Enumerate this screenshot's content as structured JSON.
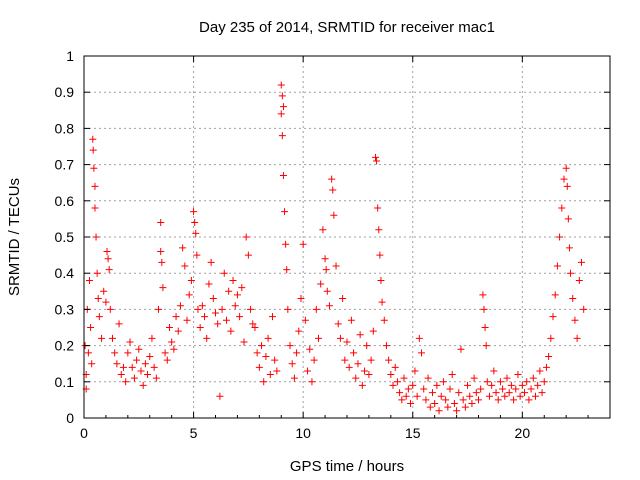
{
  "chart_data": {
    "type": "scatter",
    "title": "Day 235 of 2014, SRMTID for receiver mac1",
    "xlabel": "GPS time / hours",
    "ylabel": "SRMTID / TECUs",
    "xlim": [
      0,
      24
    ],
    "ylim": [
      0,
      1
    ],
    "xticks": [
      0,
      5,
      10,
      15,
      20
    ],
    "xtick_labels": [
      "0",
      "5",
      "10",
      "15",
      "20"
    ],
    "yticks": [
      0,
      0.1,
      0.2,
      0.3,
      0.4,
      0.5,
      0.6,
      0.7,
      0.8,
      0.9,
      1
    ],
    "ytick_labels": [
      "0",
      "0.1",
      "0.2",
      "0.3",
      "0.4",
      "0.5",
      "0.6",
      "0.7",
      "0.8",
      "0.9",
      "1"
    ],
    "grid": true,
    "marker": "+",
    "color": "#ff0000",
    "series": [
      {
        "name": "mac1",
        "points": [
          [
            0.05,
            0.2
          ],
          [
            0.1,
            0.12
          ],
          [
            0.1,
            0.08
          ],
          [
            0.15,
            0.3
          ],
          [
            0.2,
            0.18
          ],
          [
            0.25,
            0.38
          ],
          [
            0.3,
            0.25
          ],
          [
            0.35,
            0.15
          ],
          [
            0.4,
            0.77
          ],
          [
            0.42,
            0.74
          ],
          [
            0.45,
            0.69
          ],
          [
            0.5,
            0.64
          ],
          [
            0.5,
            0.58
          ],
          [
            0.55,
            0.5
          ],
          [
            0.6,
            0.4
          ],
          [
            0.65,
            0.33
          ],
          [
            0.7,
            0.28
          ],
          [
            0.8,
            0.22
          ],
          [
            0.9,
            0.35
          ],
          [
            1.0,
            0.32
          ],
          [
            1.05,
            0.46
          ],
          [
            1.1,
            0.44
          ],
          [
            1.15,
            0.41
          ],
          [
            1.2,
            0.3
          ],
          [
            1.3,
            0.22
          ],
          [
            1.4,
            0.18
          ],
          [
            1.5,
            0.15
          ],
          [
            1.6,
            0.26
          ],
          [
            1.7,
            0.12
          ],
          [
            1.8,
            0.14
          ],
          [
            1.9,
            0.1
          ],
          [
            2.0,
            0.18
          ],
          [
            2.1,
            0.21
          ],
          [
            2.2,
            0.14
          ],
          [
            2.3,
            0.11
          ],
          [
            2.4,
            0.16
          ],
          [
            2.5,
            0.19
          ],
          [
            2.6,
            0.13
          ],
          [
            2.7,
            0.09
          ],
          [
            2.8,
            0.15
          ],
          [
            2.9,
            0.12
          ],
          [
            3.0,
            0.17
          ],
          [
            3.1,
            0.22
          ],
          [
            3.2,
            0.14
          ],
          [
            3.3,
            0.11
          ],
          [
            3.4,
            0.3
          ],
          [
            3.5,
            0.54
          ],
          [
            3.5,
            0.46
          ],
          [
            3.55,
            0.43
          ],
          [
            3.6,
            0.36
          ],
          [
            3.7,
            0.18
          ],
          [
            3.8,
            0.16
          ],
          [
            3.9,
            0.25
          ],
          [
            4.0,
            0.21
          ],
          [
            4.1,
            0.19
          ],
          [
            4.2,
            0.28
          ],
          [
            4.3,
            0.24
          ],
          [
            4.4,
            0.31
          ],
          [
            4.5,
            0.47
          ],
          [
            4.6,
            0.42
          ],
          [
            4.7,
            0.27
          ],
          [
            4.8,
            0.34
          ],
          [
            4.9,
            0.38
          ],
          [
            5.0,
            0.57
          ],
          [
            5.05,
            0.54
          ],
          [
            5.1,
            0.51
          ],
          [
            5.15,
            0.45
          ],
          [
            5.2,
            0.3
          ],
          [
            5.3,
            0.25
          ],
          [
            5.4,
            0.31
          ],
          [
            5.5,
            0.28
          ],
          [
            5.6,
            0.22
          ],
          [
            5.7,
            0.37
          ],
          [
            5.8,
            0.43
          ],
          [
            5.9,
            0.33
          ],
          [
            6.0,
            0.29
          ],
          [
            6.1,
            0.26
          ],
          [
            6.2,
            0.06
          ],
          [
            6.3,
            0.3
          ],
          [
            6.4,
            0.4
          ],
          [
            6.5,
            0.27
          ],
          [
            6.6,
            0.35
          ],
          [
            6.7,
            0.24
          ],
          [
            6.8,
            0.38
          ],
          [
            6.9,
            0.31
          ],
          [
            7.0,
            0.34
          ],
          [
            7.1,
            0.28
          ],
          [
            7.2,
            0.36
          ],
          [
            7.3,
            0.21
          ],
          [
            7.4,
            0.5
          ],
          [
            7.5,
            0.45
          ],
          [
            7.6,
            0.3
          ],
          [
            7.7,
            0.26
          ],
          [
            7.8,
            0.25
          ],
          [
            7.9,
            0.18
          ],
          [
            8.0,
            0.14
          ],
          [
            8.1,
            0.2
          ],
          [
            8.2,
            0.1
          ],
          [
            8.3,
            0.17
          ],
          [
            8.4,
            0.22
          ],
          [
            8.5,
            0.12
          ],
          [
            8.6,
            0.28
          ],
          [
            8.7,
            0.16
          ],
          [
            8.8,
            0.13
          ],
          [
            9.0,
            0.92
          ],
          [
            9.05,
            0.89
          ],
          [
            9.1,
            0.86
          ],
          [
            9.0,
            0.84
          ],
          [
            9.05,
            0.78
          ],
          [
            9.1,
            0.67
          ],
          [
            9.15,
            0.57
          ],
          [
            9.2,
            0.48
          ],
          [
            9.25,
            0.41
          ],
          [
            9.3,
            0.3
          ],
          [
            9.4,
            0.2
          ],
          [
            9.5,
            0.15
          ],
          [
            9.6,
            0.11
          ],
          [
            9.7,
            0.18
          ],
          [
            9.8,
            0.24
          ],
          [
            9.9,
            0.33
          ],
          [
            10.0,
            0.48
          ],
          [
            10.1,
            0.27
          ],
          [
            10.2,
            0.13
          ],
          [
            10.3,
            0.19
          ],
          [
            10.4,
            0.1
          ],
          [
            10.5,
            0.16
          ],
          [
            10.6,
            0.3
          ],
          [
            10.7,
            0.22
          ],
          [
            10.8,
            0.37
          ],
          [
            10.9,
            0.52
          ],
          [
            11.0,
            0.44
          ],
          [
            11.05,
            0.41
          ],
          [
            11.1,
            0.35
          ],
          [
            11.2,
            0.31
          ],
          [
            11.3,
            0.66
          ],
          [
            11.35,
            0.63
          ],
          [
            11.4,
            0.56
          ],
          [
            11.5,
            0.42
          ],
          [
            11.6,
            0.26
          ],
          [
            11.7,
            0.22
          ],
          [
            11.8,
            0.33
          ],
          [
            11.9,
            0.16
          ],
          [
            12.0,
            0.21
          ],
          [
            12.1,
            0.14
          ],
          [
            12.2,
            0.27
          ],
          [
            12.3,
            0.18
          ],
          [
            12.4,
            0.11
          ],
          [
            12.5,
            0.15
          ],
          [
            12.6,
            0.23
          ],
          [
            12.7,
            0.09
          ],
          [
            12.8,
            0.13
          ],
          [
            12.9,
            0.2
          ],
          [
            13.0,
            0.12
          ],
          [
            13.1,
            0.16
          ],
          [
            13.2,
            0.24
          ],
          [
            13.3,
            0.72
          ],
          [
            13.35,
            0.71
          ],
          [
            13.4,
            0.58
          ],
          [
            13.45,
            0.52
          ],
          [
            13.5,
            0.45
          ],
          [
            13.55,
            0.38
          ],
          [
            13.6,
            0.32
          ],
          [
            13.7,
            0.27
          ],
          [
            13.8,
            0.2
          ],
          [
            13.9,
            0.16
          ],
          [
            14.0,
            0.12
          ],
          [
            14.1,
            0.09
          ],
          [
            14.2,
            0.14
          ],
          [
            14.3,
            0.1
          ],
          [
            14.4,
            0.07
          ],
          [
            14.5,
            0.05
          ],
          [
            14.6,
            0.11
          ],
          [
            14.7,
            0.06
          ],
          [
            14.8,
            0.08
          ],
          [
            14.9,
            0.04
          ],
          [
            15.0,
            0.09
          ],
          [
            15.1,
            0.13
          ],
          [
            15.2,
            0.06
          ],
          [
            15.3,
            0.22
          ],
          [
            15.4,
            0.18
          ],
          [
            15.5,
            0.08
          ],
          [
            15.6,
            0.05
          ],
          [
            15.7,
            0.11
          ],
          [
            15.8,
            0.03
          ],
          [
            15.9,
            0.07
          ],
          [
            16.0,
            0.04
          ],
          [
            16.1,
            0.09
          ],
          [
            16.2,
            0.02
          ],
          [
            16.3,
            0.06
          ],
          [
            16.4,
            0.1
          ],
          [
            16.5,
            0.05
          ],
          [
            16.6,
            0.03
          ],
          [
            16.7,
            0.08
          ],
          [
            16.8,
            0.12
          ],
          [
            16.9,
            0.04
          ],
          [
            17.0,
            0.02
          ],
          [
            17.1,
            0.07
          ],
          [
            17.2,
            0.19
          ],
          [
            17.3,
            0.05
          ],
          [
            17.4,
            0.03
          ],
          [
            17.5,
            0.09
          ],
          [
            17.6,
            0.06
          ],
          [
            17.7,
            0.04
          ],
          [
            17.8,
            0.11
          ],
          [
            17.9,
            0.07
          ],
          [
            18.0,
            0.05
          ],
          [
            18.1,
            0.08
          ],
          [
            18.2,
            0.34
          ],
          [
            18.25,
            0.3
          ],
          [
            18.3,
            0.25
          ],
          [
            18.35,
            0.2
          ],
          [
            18.4,
            0.1
          ],
          [
            18.5,
            0.06
          ],
          [
            18.6,
            0.09
          ],
          [
            18.7,
            0.13
          ],
          [
            18.8,
            0.07
          ],
          [
            18.9,
            0.05
          ],
          [
            19.0,
            0.1
          ],
          [
            19.1,
            0.08
          ],
          [
            19.2,
            0.06
          ],
          [
            19.3,
            0.11
          ],
          [
            19.4,
            0.07
          ],
          [
            19.5,
            0.09
          ],
          [
            19.6,
            0.05
          ],
          [
            19.7,
            0.08
          ],
          [
            19.8,
            0.12
          ],
          [
            19.9,
            0.06
          ],
          [
            20.0,
            0.09
          ],
          [
            20.1,
            0.07
          ],
          [
            20.2,
            0.1
          ],
          [
            20.3,
            0.05
          ],
          [
            20.4,
            0.08
          ],
          [
            20.5,
            0.11
          ],
          [
            20.6,
            0.06
          ],
          [
            20.7,
            0.09
          ],
          [
            20.8,
            0.13
          ],
          [
            20.9,
            0.07
          ],
          [
            21.0,
            0.1
          ],
          [
            21.1,
            0.14
          ],
          [
            21.2,
            0.17
          ],
          [
            21.3,
            0.22
          ],
          [
            21.4,
            0.28
          ],
          [
            21.5,
            0.34
          ],
          [
            21.6,
            0.42
          ],
          [
            21.7,
            0.5
          ],
          [
            21.8,
            0.58
          ],
          [
            21.9,
            0.66
          ],
          [
            22.0,
            0.69
          ],
          [
            22.05,
            0.64
          ],
          [
            22.1,
            0.55
          ],
          [
            22.15,
            0.47
          ],
          [
            22.2,
            0.4
          ],
          [
            22.3,
            0.33
          ],
          [
            22.4,
            0.27
          ],
          [
            22.5,
            0.22
          ],
          [
            22.6,
            0.38
          ],
          [
            22.7,
            0.43
          ],
          [
            22.8,
            0.3
          ]
        ]
      }
    ]
  }
}
